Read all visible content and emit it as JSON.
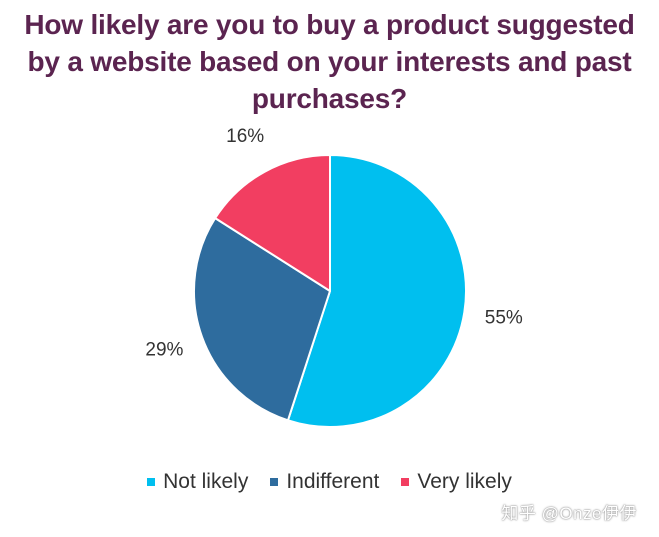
{
  "chart_data": {
    "type": "pie",
    "title_lines": [
      "How likely are you to buy a product suggested",
      "by a website based on your interests and past",
      "purchases?"
    ],
    "slices": [
      {
        "label": "Not likely",
        "value": 55,
        "value_label": "55%",
        "color": "#00bfef"
      },
      {
        "label": "Indifferent",
        "value": 29,
        "value_label": "29%",
        "color": "#2e6c9e"
      },
      {
        "label": "Very likely",
        "value": 16,
        "value_label": "16%",
        "color": "#f23e61"
      }
    ],
    "legend_position": "bottom",
    "start_angle": "12 o'clock",
    "direction": "clockwise"
  },
  "watermark": "知乎 @Onze伊伊"
}
